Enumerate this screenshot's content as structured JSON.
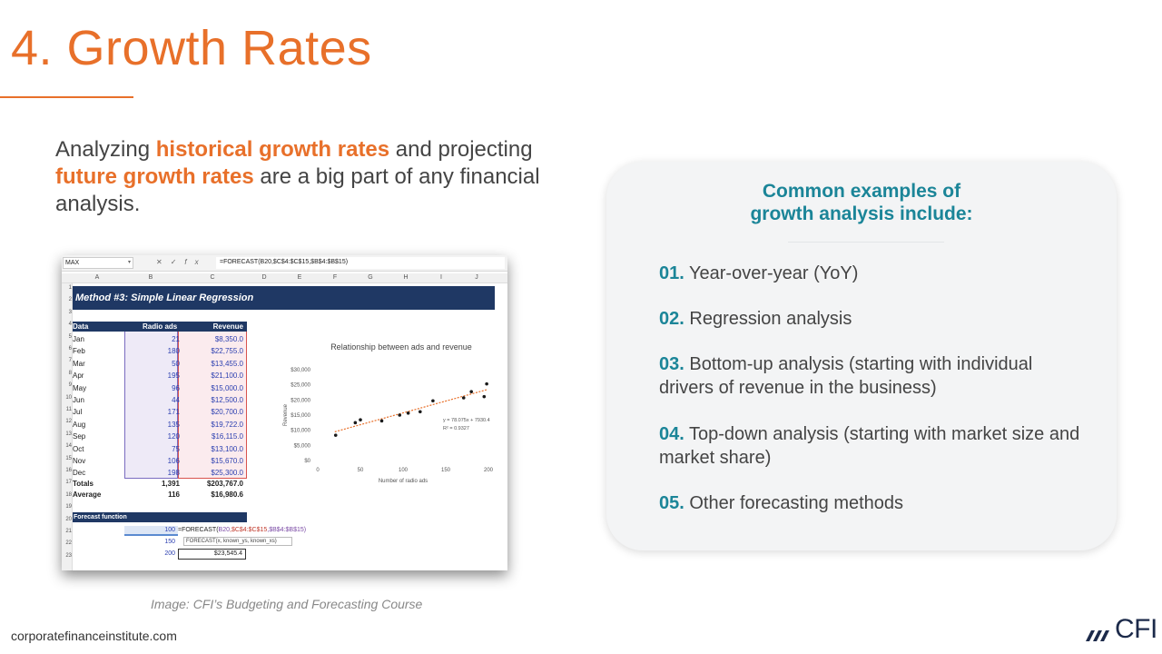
{
  "slide": {
    "title": "4. Growth Rates",
    "intro": {
      "p1": "Analyzing ",
      "h1": "historical growth rates",
      "p2": " and projecting ",
      "h2": "future growth rates",
      "p3": " are a big part of any financial analysis."
    },
    "caption": "Image: CFI’s Budgeting and Forecasting Course",
    "footer": "corporatefinanceinstitute.com",
    "logo": "CFI"
  },
  "excel": {
    "name_box": "MAX",
    "formula_bar": "=FORECAST(B20,$C$4:$C$15,$B$4:$B$15)",
    "columns": [
      "A",
      "B",
      "C",
      "D",
      "E",
      "F",
      "G",
      "H",
      "I",
      "J"
    ],
    "rows": [
      "1",
      "2",
      "3",
      "4",
      "5",
      "6",
      "7",
      "8",
      "9",
      "10",
      "11",
      "12",
      "13",
      "14",
      "15",
      "16",
      "17",
      "18",
      "19",
      "20",
      "21",
      "22",
      "23"
    ],
    "banner": "Method #3: Simple Linear Regression",
    "headers": {
      "data": "Data",
      "ads": "Radio ads",
      "revenue": "Revenue"
    },
    "data": [
      {
        "month": "Jan",
        "ads": "21",
        "revenue": "$8,350.0"
      },
      {
        "month": "Feb",
        "ads": "180",
        "revenue": "$22,755.0"
      },
      {
        "month": "Mar",
        "ads": "50",
        "revenue": "$13,455.0"
      },
      {
        "month": "Apr",
        "ads": "195",
        "revenue": "$21,100.0"
      },
      {
        "month": "May",
        "ads": "96",
        "revenue": "$15,000.0"
      },
      {
        "month": "Jun",
        "ads": "44",
        "revenue": "$12,500.0"
      },
      {
        "month": "Jul",
        "ads": "171",
        "revenue": "$20,700.0"
      },
      {
        "month": "Aug",
        "ads": "135",
        "revenue": "$19,722.0"
      },
      {
        "month": "Sep",
        "ads": "120",
        "revenue": "$16,115.0"
      },
      {
        "month": "Oct",
        "ads": "75",
        "revenue": "$13,100.0"
      },
      {
        "month": "Nov",
        "ads": "106",
        "revenue": "$15,670.0"
      },
      {
        "month": "Dec",
        "ads": "198",
        "revenue": "$25,300.0"
      }
    ],
    "totals": {
      "label": "Totals",
      "ads": "1,391",
      "revenue": "$203,767.0"
    },
    "average": {
      "label": "Average",
      "ads": "116",
      "revenue": "$16,980.6"
    },
    "forecast": {
      "header": "Forecast function",
      "inputs": [
        "100",
        "150",
        "200"
      ],
      "cell_formula": {
        "a": "=FORECAST(",
        "b": "B20",
        "c": ",$C$4:$C$15",
        "d": ",$B$4:$B$15)"
      },
      "tooltip": "FORECAST(x, known_ys, known_xs)",
      "result": "$23,545.4"
    }
  },
  "chart_data": {
    "type": "scatter",
    "title": "Relationship between ads and revenue",
    "xlabel": "Number of radio ads",
    "ylabel": "Revenue",
    "xlim": [
      0,
      200
    ],
    "ylim": [
      0,
      30000
    ],
    "xticks": [
      "0",
      "50",
      "100",
      "150",
      "200"
    ],
    "yticks": [
      "$0",
      "$5,000",
      "$10,000",
      "$15,000",
      "$20,000",
      "$25,000",
      "$30,000"
    ],
    "x": [
      21,
      180,
      50,
      195,
      96,
      44,
      171,
      135,
      120,
      75,
      106,
      198
    ],
    "y": [
      8350,
      22755,
      13455,
      21100,
      15000,
      12500,
      20700,
      19722,
      16115,
      13100,
      15670,
      25300
    ],
    "trendline": {
      "slope": 78.075,
      "intercept": 7930.4
    },
    "annotation": [
      "y = 78.075x + 7930.4",
      "R² = 0.9327"
    ],
    "colors": {
      "points": "#1a1a1a",
      "trendline": "#e8702a"
    },
    "grid": false
  },
  "card": {
    "title_line1": "Common examples of",
    "title_line2": "growth analysis include:",
    "items": [
      {
        "num": "01.",
        "text": "Year-over-year (YoY)"
      },
      {
        "num": "02.",
        "text": "Regression analysis"
      },
      {
        "num": "03.",
        "text": "Bottom-up analysis (starting with individual drivers of revenue in the business)"
      },
      {
        "num": "04.",
        "text": "Top-down analysis (starting with market size and market share)"
      },
      {
        "num": "05.",
        "text": "Other forecasting methods"
      }
    ]
  },
  "colors": {
    "accent_orange": "#e8702a",
    "accent_teal": "#1b8598",
    "excel_navy": "#1f3864"
  }
}
